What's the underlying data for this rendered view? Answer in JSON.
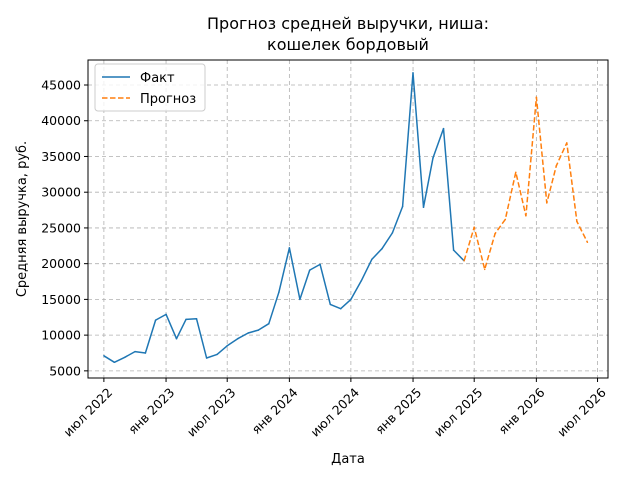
{
  "chart_data": {
    "type": "line",
    "title_lines": [
      "Прогноз средней выручки, ниша:",
      "кошелек бордовый"
    ],
    "xlabel": "Дата",
    "ylabel": "Средняя выручка, руб.",
    "x_range": [
      "2022-05-15",
      "2026-08-01"
    ],
    "ylim": [
      4000,
      48500
    ],
    "yticks": [
      5000,
      10000,
      15000,
      20000,
      25000,
      30000,
      35000,
      40000,
      45000
    ],
    "xticks": [
      {
        "date": "2022-07-01",
        "label": "июл 2022"
      },
      {
        "date": "2023-01-01",
        "label": "янв 2023"
      },
      {
        "date": "2023-07-01",
        "label": "июл 2023"
      },
      {
        "date": "2024-01-01",
        "label": "янв 2024"
      },
      {
        "date": "2024-07-01",
        "label": "июл 2024"
      },
      {
        "date": "2025-01-01",
        "label": "янв 2025"
      },
      {
        "date": "2025-07-01",
        "label": "июл 2025"
      },
      {
        "date": "2026-01-01",
        "label": "янв 2026"
      },
      {
        "date": "2026-07-01",
        "label": "июл 2026"
      }
    ],
    "grid": true,
    "legend_position": "top-left",
    "series": [
      {
        "name": "Факт",
        "color": "#1f77b4",
        "style": "solid",
        "points": [
          [
            "2022-07-01",
            7100
          ],
          [
            "2022-08-01",
            6200
          ],
          [
            "2022-09-01",
            6900
          ],
          [
            "2022-10-01",
            7700
          ],
          [
            "2022-11-01",
            7500
          ],
          [
            "2022-12-01",
            12100
          ],
          [
            "2023-01-01",
            12900
          ],
          [
            "2023-02-01",
            9500
          ],
          [
            "2023-03-01",
            12200
          ],
          [
            "2023-04-01",
            12300
          ],
          [
            "2023-05-01",
            6800
          ],
          [
            "2023-06-01",
            7300
          ],
          [
            "2023-07-01",
            8500
          ],
          [
            "2023-08-01",
            9500
          ],
          [
            "2023-09-01",
            10300
          ],
          [
            "2023-10-01",
            10700
          ],
          [
            "2023-11-01",
            11600
          ],
          [
            "2023-12-01",
            16000
          ],
          [
            "2024-01-01",
            22200
          ],
          [
            "2024-02-01",
            15000
          ],
          [
            "2024-03-01",
            19100
          ],
          [
            "2024-04-01",
            19900
          ],
          [
            "2024-05-01",
            14300
          ],
          [
            "2024-06-01",
            13700
          ],
          [
            "2024-07-01",
            15000
          ],
          [
            "2024-08-01",
            17600
          ],
          [
            "2024-09-01",
            20600
          ],
          [
            "2024-10-01",
            22100
          ],
          [
            "2024-11-01",
            24300
          ],
          [
            "2024-12-01",
            28000
          ],
          [
            "2025-01-01",
            46700
          ],
          [
            "2025-02-01",
            27900
          ],
          [
            "2025-03-01",
            34800
          ],
          [
            "2025-04-01",
            38900
          ],
          [
            "2025-05-01",
            21900
          ],
          [
            "2025-06-01",
            20400
          ]
        ]
      },
      {
        "name": "Прогноз",
        "color": "#ff7f0e",
        "style": "dashed",
        "points": [
          [
            "2025-06-01",
            20400
          ],
          [
            "2025-07-01",
            25100
          ],
          [
            "2025-08-01",
            19200
          ],
          [
            "2025-09-01",
            24200
          ],
          [
            "2025-10-01",
            26200
          ],
          [
            "2025-11-01",
            32800
          ],
          [
            "2025-12-01",
            26700
          ],
          [
            "2026-01-01",
            43300
          ],
          [
            "2026-02-01",
            28500
          ],
          [
            "2026-03-01",
            33700
          ],
          [
            "2026-04-01",
            36900
          ],
          [
            "2026-05-01",
            25900
          ],
          [
            "2026-06-01",
            23000
          ]
        ]
      }
    ]
  }
}
